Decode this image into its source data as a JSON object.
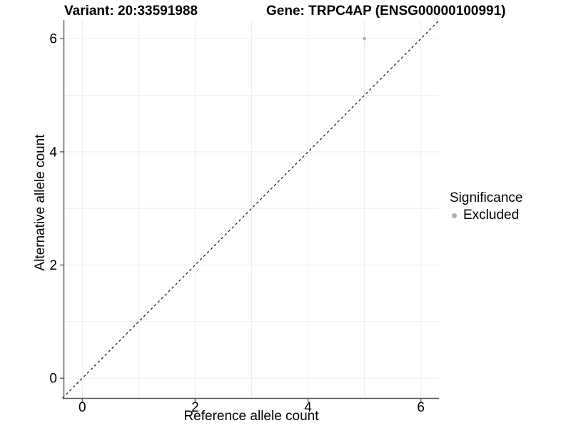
{
  "header": {
    "variant_title": "Variant: 20:33591988",
    "gene_title": "Gene: TRPC4AP (ENSG00000100991)"
  },
  "chart_data": {
    "type": "scatter",
    "xlabel": "Reference allele count",
    "ylabel": "Alternative allele count",
    "xlim": [
      -0.32,
      6.32
    ],
    "ylim": [
      -0.35,
      6.33
    ],
    "xticks": [
      0,
      2,
      4,
      6
    ],
    "yticks": [
      0,
      2,
      4,
      6
    ],
    "grid": true,
    "grid_interval": 1,
    "grid_color": "#ececec",
    "axis_color": "#565656",
    "text_color": "#000000",
    "identity_line": {
      "slope": 1,
      "intercept": 0,
      "style": "dashed",
      "color": "#000000"
    },
    "series": [
      {
        "name": "Excluded",
        "color": "#b0b0b0",
        "points": [
          [
            5,
            6
          ]
        ]
      }
    ],
    "legend": {
      "title": "Significance",
      "position": "right",
      "items": [
        {
          "label": "Excluded",
          "color": "#b0b0b0",
          "marker": "circle"
        }
      ]
    }
  }
}
